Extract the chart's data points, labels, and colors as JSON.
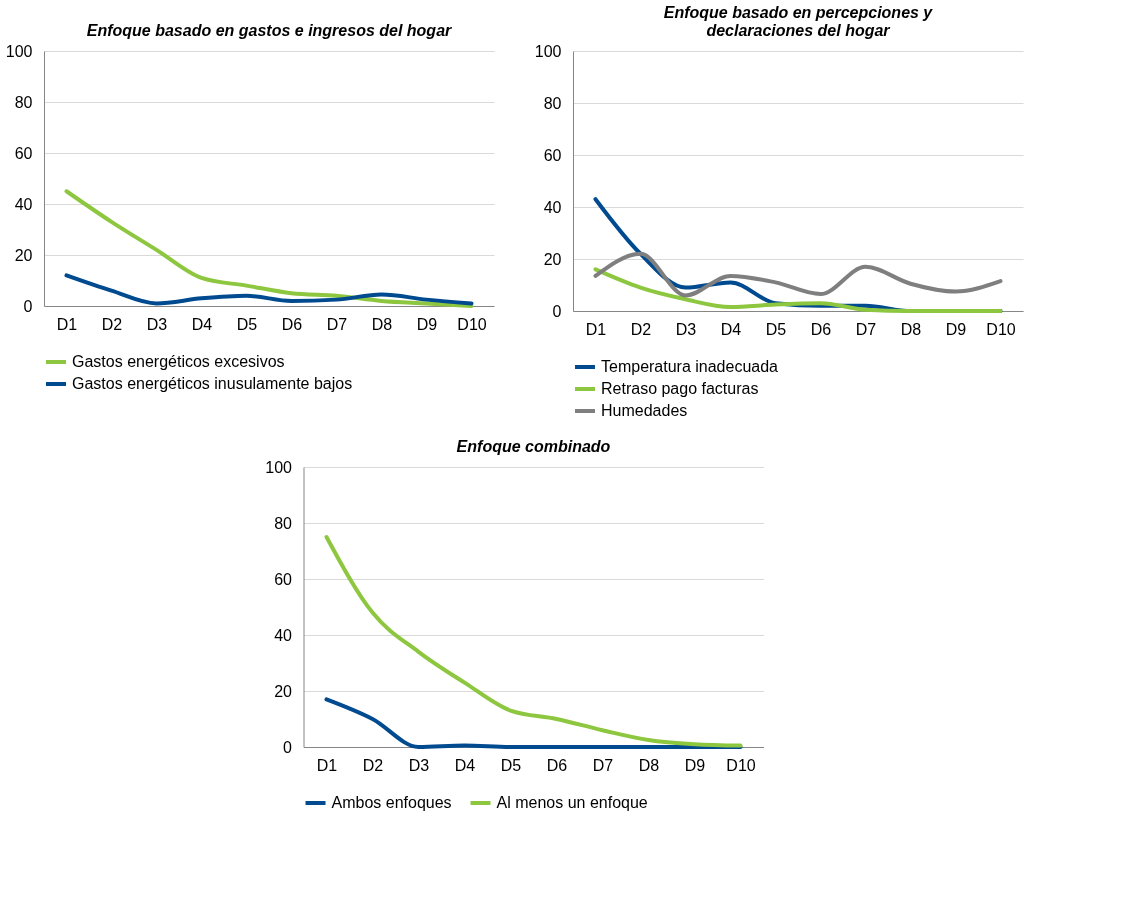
{
  "chart_data": [
    {
      "type": "line",
      "title": "Enfoque basado en gastos e ingresos del hogar",
      "categories": [
        "D1",
        "D2",
        "D3",
        "D4",
        "D5",
        "D6",
        "D7",
        "D8",
        "D9",
        "D10"
      ],
      "ylim": [
        0,
        100
      ],
      "yticks": [
        0,
        20,
        40,
        60,
        80,
        100
      ],
      "grid": "y",
      "legend": "bottom",
      "series": [
        {
          "name": "Gastos energéticos excesivos",
          "color": "#8dc63f",
          "values": [
            45,
            33,
            22,
            11,
            8,
            5,
            4,
            2,
            1,
            0
          ]
        },
        {
          "name": "Gastos energéticos inusulamente bajos",
          "color": "#004a8f",
          "values": [
            12,
            6,
            1,
            3,
            4,
            2,
            2.5,
            4.5,
            2.5,
            1
          ]
        }
      ]
    },
    {
      "type": "line",
      "title": "Enfoque basado en percepciones y declaraciones del hogar",
      "categories": [
        "D1",
        "D2",
        "D3",
        "D4",
        "D5",
        "D6",
        "D7",
        "D8",
        "D9",
        "D10"
      ],
      "ylim": [
        0,
        100
      ],
      "yticks": [
        0,
        20,
        40,
        60,
        80,
        100
      ],
      "grid": "y",
      "legend": "bottom",
      "series": [
        {
          "name": "Temperatura inadecuada",
          "color": "#004a8f",
          "values": [
            43,
            22,
            9,
            11,
            3,
            2,
            2,
            0,
            0,
            0
          ]
        },
        {
          "name": "Retraso pago facturas",
          "color": "#8dc63f",
          "values": [
            16,
            9,
            4.5,
            1.5,
            2.5,
            3,
            0.5,
            0,
            0,
            0
          ]
        },
        {
          "name": "Humedades",
          "color": "#7f7f7f",
          "values": [
            13.5,
            22,
            6,
            13.5,
            11,
            6.5,
            17,
            10.5,
            7.5,
            11.5
          ]
        }
      ]
    },
    {
      "type": "line",
      "title": "Enfoque combinado",
      "categories": [
        "D1",
        "D2",
        "D3",
        "D4",
        "D5",
        "D6",
        "D7",
        "D8",
        "D9",
        "D10"
      ],
      "ylim": [
        0,
        100
      ],
      "yticks": [
        0,
        20,
        40,
        60,
        80,
        100
      ],
      "grid": "y",
      "legend": "bottom",
      "series": [
        {
          "name": "Ambos enfoques",
          "color": "#004a8f",
          "values": [
            17,
            10,
            0,
            0.5,
            0,
            0,
            0,
            0,
            0,
            0
          ]
        },
        {
          "name": "Al menos un enfoque",
          "color": "#8dc63f",
          "values": [
            75,
            48,
            34,
            23,
            13,
            10,
            6,
            2.5,
            1,
            0.5
          ]
        }
      ]
    }
  ]
}
